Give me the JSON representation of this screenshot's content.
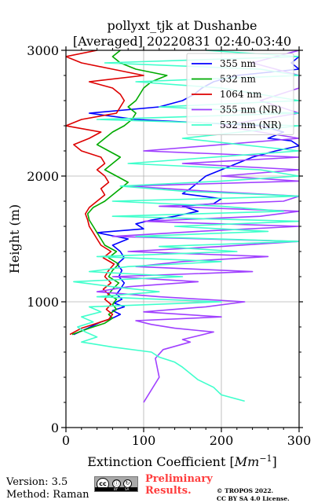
{
  "chart_data": {
    "type": "line",
    "title": "pollyxt_tjk at Dushanbe",
    "subtitle": "[Averaged] 20220831 02:40-03:40",
    "xlabel": "Extinction Coefficient [Mm⁻¹]",
    "xlabel_main": "Extinction Coefficient [",
    "xlabel_unit_base": "Mm",
    "xlabel_unit_exp": "−1",
    "xlabel_close": "]",
    "ylabel": "Height (m)",
    "xlim": [
      0,
      300
    ],
    "ylim": [
      0,
      3000
    ],
    "xticks": [
      0,
      100,
      200,
      300
    ],
    "yticks": [
      0,
      1000,
      2000,
      3000
    ],
    "xtick_labels": [
      "0",
      "100",
      "200",
      "300"
    ],
    "ytick_labels": [
      "0",
      "1000",
      "2000",
      "3000"
    ],
    "grid": true,
    "legend_position": "top-right",
    "series": [
      {
        "name": "355 nm",
        "color": "#0000ff",
        "points": [
          [
            10,
            740
          ],
          [
            28,
            790
          ],
          [
            45,
            840
          ],
          [
            60,
            870
          ],
          [
            70,
            900
          ],
          [
            60,
            930
          ],
          [
            75,
            960
          ],
          [
            62,
            990
          ],
          [
            72,
            1020
          ],
          [
            65,
            1060
          ],
          [
            70,
            1100
          ],
          [
            75,
            1150
          ],
          [
            68,
            1200
          ],
          [
            72,
            1250
          ],
          [
            66,
            1300
          ],
          [
            75,
            1350
          ],
          [
            70,
            1400
          ],
          [
            60,
            1450
          ],
          [
            80,
            1500
          ],
          [
            40,
            1550
          ],
          [
            100,
            1580
          ],
          [
            90,
            1620
          ],
          [
            110,
            1650
          ],
          [
            140,
            1680
          ],
          [
            170,
            1720
          ],
          [
            150,
            1760
          ],
          [
            190,
            1780
          ],
          [
            200,
            1820
          ],
          [
            150,
            1860
          ],
          [
            160,
            1900
          ],
          [
            170,
            1950
          ],
          [
            180,
            2000
          ],
          [
            200,
            2050
          ],
          [
            220,
            2100
          ],
          [
            240,
            2150
          ],
          [
            270,
            2200
          ],
          [
            300,
            2240
          ],
          [
            290,
            2280
          ],
          [
            260,
            2300
          ],
          [
            280,
            2350
          ],
          [
            250,
            2400
          ],
          [
            90,
            2450
          ],
          [
            30,
            2500
          ],
          [
            120,
            2550
          ],
          [
            150,
            2600
          ],
          [
            165,
            2650
          ],
          [
            175,
            2700
          ],
          [
            190,
            2750
          ],
          [
            220,
            2800
          ],
          [
            300,
            2850
          ],
          [
            290,
            2900
          ],
          [
            300,
            2950
          ]
        ]
      },
      {
        "name": "532 nm",
        "color": "#00aa00",
        "points": [
          [
            8,
            740
          ],
          [
            30,
            790
          ],
          [
            50,
            830
          ],
          [
            60,
            870
          ],
          [
            55,
            900
          ],
          [
            65,
            940
          ],
          [
            60,
            980
          ],
          [
            65,
            1020
          ],
          [
            55,
            1060
          ],
          [
            60,
            1100
          ],
          [
            68,
            1150
          ],
          [
            55,
            1200
          ],
          [
            60,
            1250
          ],
          [
            68,
            1300
          ],
          [
            55,
            1350
          ],
          [
            65,
            1400
          ],
          [
            50,
            1450
          ],
          [
            45,
            1500
          ],
          [
            40,
            1550
          ],
          [
            35,
            1600
          ],
          [
            30,
            1650
          ],
          [
            28,
            1700
          ],
          [
            35,
            1750
          ],
          [
            50,
            1800
          ],
          [
            60,
            1850
          ],
          [
            70,
            1900
          ],
          [
            80,
            1950
          ],
          [
            65,
            2000
          ],
          [
            50,
            2050
          ],
          [
            60,
            2100
          ],
          [
            70,
            2150
          ],
          [
            55,
            2200
          ],
          [
            40,
            2250
          ],
          [
            50,
            2300
          ],
          [
            60,
            2350
          ],
          [
            75,
            2400
          ],
          [
            85,
            2450
          ],
          [
            90,
            2500
          ],
          [
            80,
            2550
          ],
          [
            90,
            2600
          ],
          [
            95,
            2650
          ],
          [
            100,
            2700
          ],
          [
            110,
            2750
          ],
          [
            130,
            2800
          ],
          [
            90,
            2850
          ],
          [
            70,
            2900
          ],
          [
            60,
            2950
          ],
          [
            70,
            3000
          ]
        ]
      },
      {
        "name": "1064 nm",
        "color": "#dd0000",
        "points": [
          [
            5,
            740
          ],
          [
            20,
            790
          ],
          [
            40,
            830
          ],
          [
            55,
            860
          ],
          [
            60,
            900
          ],
          [
            52,
            940
          ],
          [
            58,
            980
          ],
          [
            50,
            1020
          ],
          [
            55,
            1060
          ],
          [
            48,
            1100
          ],
          [
            58,
            1150
          ],
          [
            50,
            1200
          ],
          [
            55,
            1250
          ],
          [
            62,
            1300
          ],
          [
            48,
            1350
          ],
          [
            58,
            1400
          ],
          [
            45,
            1450
          ],
          [
            40,
            1500
          ],
          [
            35,
            1550
          ],
          [
            30,
            1600
          ],
          [
            28,
            1650
          ],
          [
            25,
            1700
          ],
          [
            30,
            1750
          ],
          [
            40,
            1800
          ],
          [
            50,
            1850
          ],
          [
            45,
            1900
          ],
          [
            55,
            1950
          ],
          [
            50,
            2000
          ],
          [
            40,
            2050
          ],
          [
            50,
            2100
          ],
          [
            45,
            2150
          ],
          [
            20,
            2200
          ],
          [
            10,
            2250
          ],
          [
            30,
            2300
          ],
          [
            45,
            2350
          ],
          [
            0,
            2400
          ],
          [
            20,
            2450
          ],
          [
            65,
            2500
          ],
          [
            70,
            2550
          ],
          [
            75,
            2600
          ],
          [
            70,
            2650
          ],
          [
            60,
            2700
          ],
          [
            30,
            2750
          ],
          [
            100,
            2800
          ],
          [
            60,
            2850
          ],
          [
            20,
            2900
          ],
          [
            0,
            2950
          ],
          [
            40,
            3000
          ]
        ]
      },
      {
        "name": "355 nm (NR)",
        "color": "#a040ff",
        "points": [
          [
            100,
            200
          ],
          [
            120,
            400
          ],
          [
            115,
            550
          ],
          [
            125,
            620
          ],
          [
            160,
            680
          ],
          [
            150,
            700
          ],
          [
            190,
            760
          ],
          [
            140,
            790
          ],
          [
            110,
            820
          ],
          [
            90,
            850
          ],
          [
            200,
            880
          ],
          [
            100,
            920
          ],
          [
            180,
            960
          ],
          [
            230,
            1000
          ],
          [
            120,
            1040
          ],
          [
            40,
            1080
          ],
          [
            80,
            1120
          ],
          [
            170,
            1160
          ],
          [
            60,
            1200
          ],
          [
            240,
            1240
          ],
          [
            90,
            1280
          ],
          [
            150,
            1320
          ],
          [
            260,
            1360
          ],
          [
            80,
            1400
          ],
          [
            200,
            1440
          ],
          [
            300,
            1480
          ],
          [
            60,
            1520
          ],
          [
            170,
            1560
          ],
          [
            300,
            1600
          ],
          [
            100,
            1640
          ],
          [
            250,
            1680
          ],
          [
            300,
            1720
          ],
          [
            120,
            1760
          ],
          [
            280,
            1800
          ],
          [
            300,
            1840
          ],
          [
            180,
            1880
          ],
          [
            80,
            1920
          ],
          [
            300,
            1960
          ],
          [
            200,
            2000
          ],
          [
            300,
            2050
          ],
          [
            150,
            2100
          ],
          [
            300,
            2150
          ],
          [
            100,
            2200
          ],
          [
            300,
            2300
          ],
          [
            200,
            2400
          ],
          [
            300,
            2500
          ],
          [
            250,
            2600
          ],
          [
            300,
            2700
          ],
          [
            300,
            2800
          ],
          [
            240,
            2900
          ],
          [
            300,
            3000
          ]
        ]
      },
      {
        "name": "532 nm (NR)",
        "color": "#40ffcc",
        "points": [
          [
            230,
            210
          ],
          [
            200,
            260
          ],
          [
            190,
            320
          ],
          [
            170,
            380
          ],
          [
            160,
            430
          ],
          [
            150,
            480
          ],
          [
            140,
            520
          ],
          [
            120,
            560
          ],
          [
            110,
            600
          ],
          [
            60,
            640
          ],
          [
            20,
            680
          ],
          [
            40,
            720
          ],
          [
            25,
            760
          ],
          [
            15,
            800
          ],
          [
            35,
            840
          ],
          [
            20,
            880
          ],
          [
            45,
            920
          ],
          [
            30,
            960
          ],
          [
            200,
            1000
          ],
          [
            40,
            1040
          ],
          [
            120,
            1080
          ],
          [
            60,
            1120
          ],
          [
            10,
            1160
          ],
          [
            150,
            1200
          ],
          [
            30,
            1240
          ],
          [
            80,
            1280
          ],
          [
            200,
            1320
          ],
          [
            40,
            1360
          ],
          [
            220,
            1400
          ],
          [
            120,
            1440
          ],
          [
            300,
            1480
          ],
          [
            90,
            1520
          ],
          [
            260,
            1560
          ],
          [
            140,
            1600
          ],
          [
            300,
            1640
          ],
          [
            60,
            1680
          ],
          [
            280,
            1720
          ],
          [
            200,
            1760
          ],
          [
            60,
            1800
          ],
          [
            300,
            1840
          ],
          [
            150,
            1880
          ],
          [
            70,
            1920
          ],
          [
            200,
            1960
          ],
          [
            300,
            2000
          ],
          [
            250,
            2050
          ],
          [
            80,
            2100
          ],
          [
            300,
            2200
          ],
          [
            150,
            2300
          ],
          [
            300,
            2400
          ],
          [
            40,
            2450
          ],
          [
            300,
            2500
          ],
          [
            120,
            2550
          ],
          [
            300,
            2600
          ],
          [
            200,
            2700
          ],
          [
            90,
            2750
          ],
          [
            300,
            2800
          ],
          [
            250,
            2850
          ],
          [
            50,
            2900
          ],
          [
            300,
            2950
          ],
          [
            180,
            3000
          ]
        ]
      }
    ]
  },
  "footer": {
    "version": "Version: 3.5",
    "method": "Method: Raman",
    "license_badge": {
      "cc": "cc",
      "by": "BY",
      "sa": "SA"
    },
    "preliminary_line1": "Preliminary",
    "preliminary_line2": "Results.",
    "copyright_line1": "© TROPOS 2022.",
    "copyright_line2": "CC BY SA 4.0 License."
  },
  "colors": {
    "grid": "#b0b0b0",
    "preliminary": "#ff3c3c",
    "badge": "#a9a9a9"
  }
}
